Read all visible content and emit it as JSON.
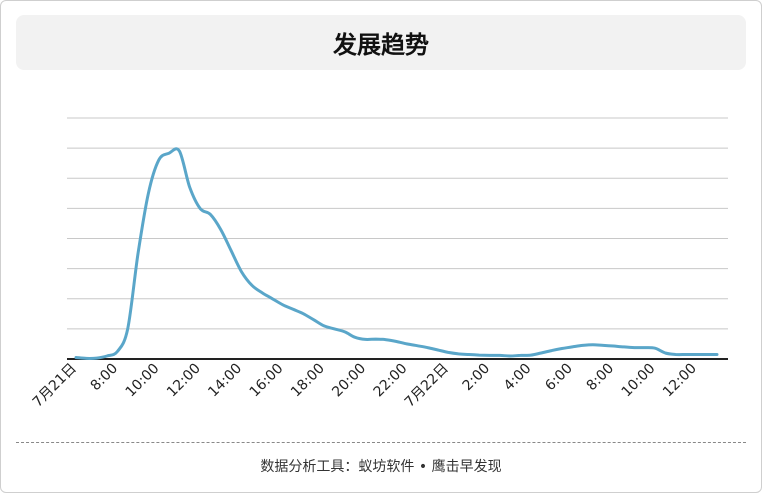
{
  "chart_title": "发展趋势",
  "footer": "数据分析工具：蚁坊软件 • 鹰击早发现",
  "colors": {
    "line": "#5aa6c9",
    "grid": "#c8c8c8",
    "axis": "#222222"
  },
  "chart_data": {
    "type": "line",
    "title": "发展趋势",
    "xlabel": "",
    "ylabel": "",
    "y_tick_labels_shown": false,
    "ylim": [
      0,
      8
    ],
    "grid": "horizontal",
    "x_tick_labels": [
      "7月21日",
      "8:00",
      "10:00",
      "12:00",
      "14:00",
      "16:00",
      "18:00",
      "20:00",
      "22:00",
      "7月22日",
      "2:00",
      "4:00",
      "6:00",
      "8:00",
      "10:00",
      "12:00"
    ],
    "x": [
      "6:00",
      "6:30",
      "7:00",
      "7:30",
      "8:00",
      "8:30",
      "9:00",
      "9:30",
      "10:00",
      "10:30",
      "11:00",
      "11:30",
      "12:00",
      "12:30",
      "13:00",
      "13:30",
      "14:00",
      "14:30",
      "15:00",
      "15:30",
      "16:00",
      "16:30",
      "17:00",
      "17:30",
      "18:00",
      "18:30",
      "19:00",
      "19:30",
      "20:00",
      "20:30",
      "21:00",
      "21:30",
      "22:00",
      "22:30",
      "23:00",
      "23:30",
      "0:00",
      "0:30",
      "1:00",
      "1:30",
      "2:00",
      "2:30",
      "3:00",
      "3:30",
      "4:00",
      "4:30",
      "5:00",
      "5:30",
      "6:00",
      "6:30",
      "7:00",
      "7:30",
      "8:00",
      "8:30",
      "9:00",
      "9:30",
      "10:00",
      "10:30",
      "11:00",
      "11:30",
      "12:00",
      "12:30",
      "13:00"
    ],
    "series": [
      {
        "values": [
          0.05,
          0.02,
          0.03,
          0.1,
          0.25,
          1.0,
          3.5,
          5.5,
          6.6,
          6.83,
          6.9,
          5.7,
          5.0,
          4.8,
          4.3,
          3.6,
          2.9,
          2.45,
          2.2,
          2.0,
          1.8,
          1.65,
          1.5,
          1.3,
          1.1,
          1.0,
          0.9,
          0.72,
          0.65,
          0.66,
          0.64,
          0.58,
          0.5,
          0.44,
          0.38,
          0.3,
          0.22,
          0.17,
          0.15,
          0.13,
          0.12,
          0.12,
          0.1,
          0.12,
          0.13,
          0.2,
          0.28,
          0.35,
          0.4,
          0.45,
          0.47,
          0.45,
          0.43,
          0.4,
          0.38,
          0.38,
          0.36,
          0.2,
          0.15,
          0.15,
          0.15,
          0.15,
          0.15
        ]
      }
    ]
  }
}
